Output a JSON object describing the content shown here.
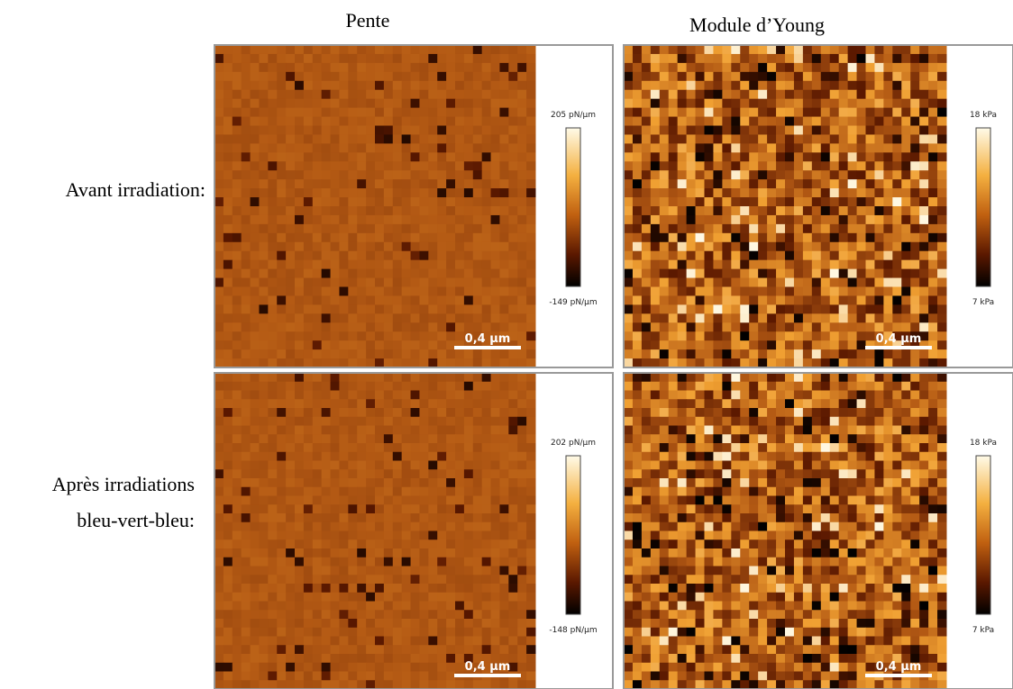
{
  "columns": [
    "Pente",
    "Module d’Young"
  ],
  "rows": [
    {
      "label_lines": [
        "Avant irradiation:"
      ],
      "panels": [
        {
          "max": "205 pN/µm",
          "min": "-149 pN/µm",
          "scale": "0,4 µm"
        },
        {
          "max": "18 kPa",
          "min": "7 kPa",
          "scale": "0,4 µm"
        }
      ]
    },
    {
      "label_lines": [
        "Après irradiations",
        "bleu-vert-bleu:"
      ],
      "panels": [
        {
          "max": "202 pN/µm",
          "min": "-148 pN/µm",
          "scale": "0,4 µm"
        },
        {
          "max": "18 kPa",
          "min": "7 kPa",
          "scale": "0,4 µm"
        }
      ]
    }
  ]
}
